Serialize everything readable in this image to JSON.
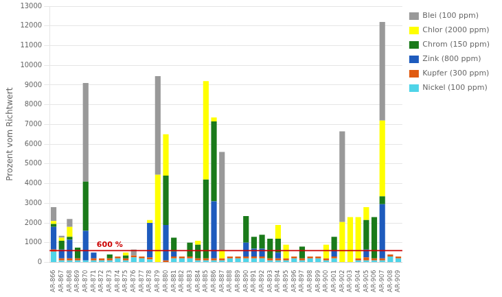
{
  "chart_data": {
    "type": "bar",
    "stacked": true,
    "categories": [
      "AR-866",
      "AR-867",
      "AR-868",
      "AR-869",
      "AR-870",
      "AR-871",
      "AR-872",
      "AR-873",
      "AR-874",
      "AR-875",
      "AR-876",
      "AR-877",
      "AR-878",
      "AR-879",
      "AR-880",
      "AR-881",
      "AR-882",
      "AR-883",
      "AR-884",
      "AR-885",
      "AR-886",
      "AR-887",
      "AR-888",
      "AR-889",
      "AR-890",
      "AR-891",
      "AR-892",
      "AR-893",
      "AR-894",
      "AR-895",
      "AR-896",
      "AR-897",
      "AR-898",
      "AR-899",
      "AR-900",
      "AR-901",
      "AR-902",
      "AR-903",
      "AR-904",
      "AR-905",
      "AR-906",
      "AR-907",
      "AR-908",
      "AR-909"
    ],
    "series": [
      {
        "name": "Nickel (100 ppm)",
        "color": "#4fd4e8",
        "values": [
          550,
          100,
          100,
          100,
          100,
          100,
          100,
          100,
          200,
          100,
          250,
          200,
          150,
          0,
          0,
          200,
          200,
          200,
          100,
          100,
          100,
          100,
          200,
          200,
          200,
          200,
          200,
          100,
          100,
          100,
          200,
          100,
          200,
          200,
          100,
          200,
          0,
          0,
          100,
          100,
          100,
          100,
          300,
          200
        ]
      },
      {
        "name": "Kupfer (300 ppm)",
        "color": "#e05a10",
        "values": [
          100,
          100,
          100,
          100,
          0,
          100,
          100,
          100,
          100,
          100,
          100,
          100,
          100,
          0,
          100,
          100,
          100,
          100,
          100,
          100,
          100,
          100,
          100,
          100,
          100,
          100,
          100,
          100,
          100,
          100,
          100,
          100,
          100,
          100,
          100,
          100,
          0,
          0,
          100,
          150,
          100,
          100,
          100,
          100
        ]
      },
      {
        "name": "Zink (800 ppm)",
        "color": "#1e5bbd",
        "values": [
          1150,
          450,
          950,
          0,
          1500,
          300,
          0,
          0,
          0,
          0,
          0,
          0,
          1750,
          0,
          1800,
          250,
          0,
          0,
          0,
          0,
          2900,
          0,
          0,
          0,
          700,
          400,
          400,
          0,
          300,
          0,
          0,
          0,
          0,
          0,
          0,
          300,
          0,
          0,
          0,
          400,
          0,
          2750,
          0,
          0
        ]
      },
      {
        "name": "Chrom (150 ppm)",
        "color": "#1a7a1a",
        "values": [
          150,
          450,
          150,
          550,
          2500,
          0,
          0,
          200,
          0,
          150,
          0,
          0,
          0,
          0,
          2500,
          700,
          0,
          700,
          700,
          4000,
          4050,
          0,
          0,
          0,
          1350,
          600,
          700,
          1000,
          700,
          0,
          0,
          600,
          0,
          0,
          0,
          700,
          0,
          0,
          0,
          1500,
          2100,
          400,
          0,
          0
        ]
      },
      {
        "name": "Chlor (2000 ppm)",
        "color": "#ffff00",
        "values": [
          150,
          150,
          500,
          0,
          0,
          0,
          0,
          0,
          0,
          150,
          0,
          0,
          150,
          4450,
          2100,
          0,
          0,
          0,
          200,
          5000,
          200,
          400,
          0,
          0,
          0,
          0,
          0,
          0,
          700,
          700,
          0,
          0,
          0,
          0,
          700,
          0,
          2050,
          2300,
          2100,
          650,
          0,
          3850,
          0,
          0
        ]
      },
      {
        "name": "Blei (100 ppm)",
        "color": "#999999",
        "values": [
          700,
          100,
          400,
          0,
          5000,
          0,
          0,
          0,
          0,
          0,
          300,
          0,
          0,
          5000,
          0,
          0,
          0,
          0,
          0,
          0,
          0,
          5000,
          0,
          0,
          0,
          0,
          0,
          0,
          0,
          0,
          0,
          0,
          0,
          0,
          0,
          0,
          4600,
          0,
          0,
          0,
          0,
          5000,
          0,
          0
        ]
      }
    ],
    "ylabel": "Prozent vom Richtwert",
    "ylim": [
      0,
      13000
    ],
    "yticks": [
      0,
      1000,
      2000,
      3000,
      4000,
      5000,
      6000,
      7000,
      8000,
      9000,
      10000,
      11000,
      12000,
      13000
    ],
    "grid": "y",
    "legend": "upper right",
    "annotations": [
      {
        "type": "hline",
        "y": 600,
        "label": "600 %",
        "color": "#cc0000"
      }
    ]
  }
}
